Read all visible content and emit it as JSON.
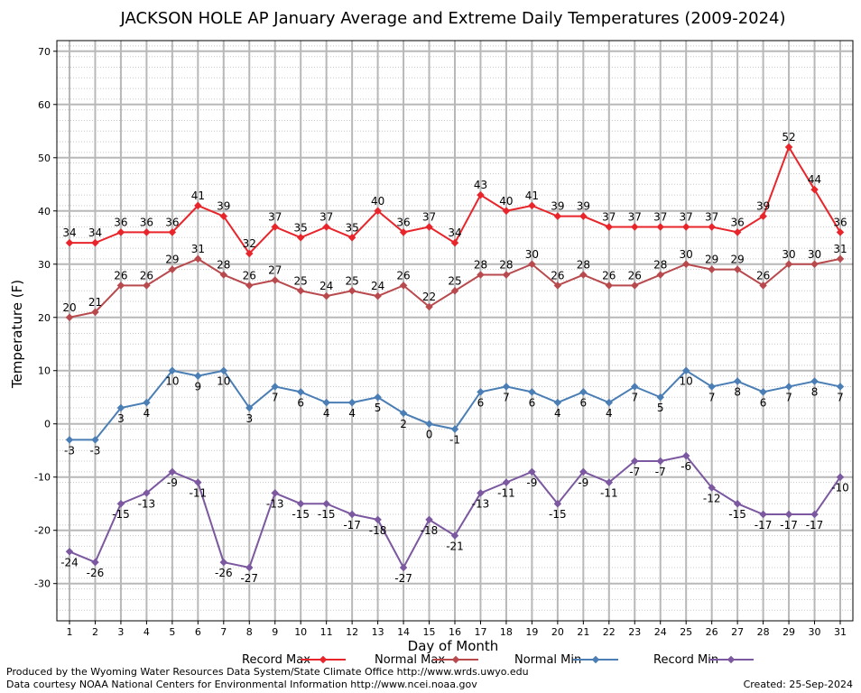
{
  "chart_data": {
    "type": "line",
    "title": "JACKSON HOLE AP January Average and Extreme Daily Temperatures (2009-2024)",
    "xlabel": "Day of Month",
    "ylabel": "Temperature (F)",
    "ylim": [
      -37,
      72
    ],
    "yticks": [
      -30,
      -20,
      -10,
      0,
      10,
      20,
      30,
      40,
      50,
      60,
      70
    ],
    "x": [
      1,
      2,
      3,
      4,
      5,
      6,
      7,
      8,
      9,
      10,
      11,
      12,
      13,
      14,
      15,
      16,
      17,
      18,
      19,
      20,
      21,
      22,
      23,
      24,
      25,
      26,
      27,
      28,
      29,
      30,
      31
    ],
    "grid": true,
    "legend_position": "bottom",
    "series": [
      {
        "name": "Record Max",
        "color": "#e8252b",
        "values": [
          34,
          34,
          36,
          36,
          36,
          41,
          39,
          32,
          37,
          35,
          37,
          35,
          40,
          36,
          37,
          34,
          43,
          40,
          41,
          39,
          39,
          37,
          37,
          37,
          37,
          37,
          36,
          39,
          52,
          44,
          36
        ]
      },
      {
        "name": "Normal Max",
        "color": "#b84a4e",
        "values": [
          20,
          21,
          26,
          26,
          29,
          31,
          28,
          26,
          27,
          25,
          24,
          25,
          24,
          26,
          22,
          25,
          28,
          28,
          30,
          26,
          28,
          26,
          26,
          28,
          30,
          29,
          29,
          26,
          30,
          30,
          31
        ]
      },
      {
        "name": "Normal Min",
        "color": "#4a7eb5",
        "values": [
          -3,
          -3,
          3,
          4,
          10,
          9,
          10,
          3,
          7,
          6,
          4,
          4,
          5,
          2,
          0,
          -1,
          6,
          7,
          6,
          4,
          6,
          4,
          7,
          5,
          10,
          7,
          8,
          6,
          7,
          8,
          7
        ]
      },
      {
        "name": "Record Min",
        "color": "#7b589f",
        "values": [
          -24,
          -26,
          -15,
          -13,
          -9,
          -11,
          -26,
          -27,
          -13,
          -15,
          -15,
          -17,
          -18,
          -27,
          -18,
          -21,
          -13,
          -11,
          -9,
          -15,
          -9,
          -11,
          -7,
          -7,
          -6,
          -12,
          -15,
          -17,
          -17,
          -17,
          -10
        ]
      }
    ]
  },
  "footer": {
    "line1": "Produced by the Wyoming Water Resources Data System/State Climate Office http://www.wrds.uwyo.edu",
    "line2": "Data courtesy NOAA National Centers for Environmental Information http://www.ncei.noaa.gov",
    "created": "Created:  25-Sep-2024"
  }
}
